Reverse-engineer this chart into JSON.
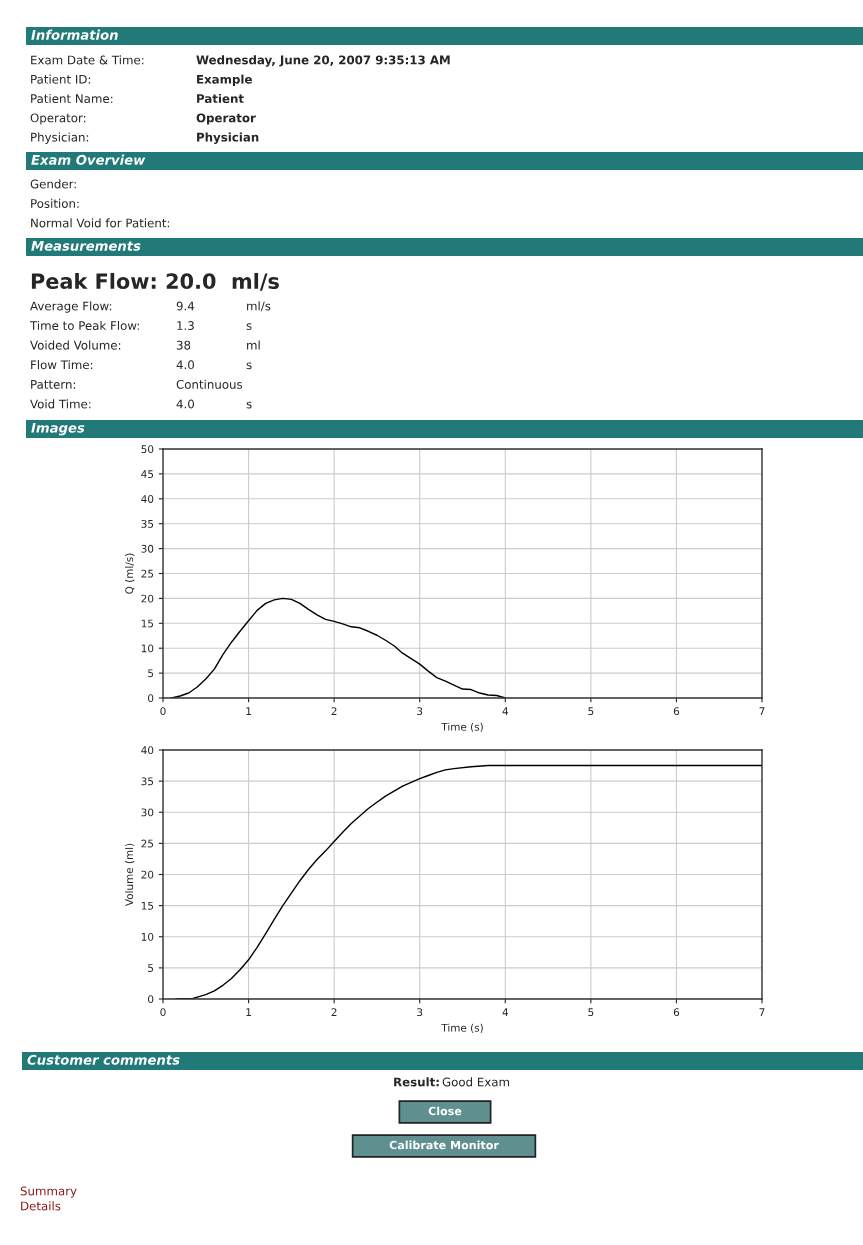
{
  "chart_data": [
    {
      "type": "other",
      "title": "Information",
      "annotations": [
        "Exam Date & Time:",
        "Wednesday, June 20, 2007 9:35:13 AM",
        "Patient ID:",
        "Example",
        "Patient Name:",
        "Patient",
        "Operator:",
        "Operator",
        "Physician:",
        "Physician"
      ]
    },
    {
      "type": "other",
      "title": "Exam Overview",
      "annotations": [
        "Gender:",
        "Position:",
        "Normal Void for Patient:"
      ]
    },
    {
      "type": "other",
      "title": "Measurements",
      "subtitle": "Peak Flow: 20.0  ml/s",
      "annotations": [
        "Average Flow:",
        "9.4",
        "ml/s",
        "Time to Peak Flow:",
        "1.3",
        "s",
        "Voided Volume:",
        "38",
        "ml",
        "Flow Time:",
        "4.0",
        "s",
        "Pattern:",
        "Continuous",
        "Void Time:",
        "4.0",
        "s"
      ]
    },
    {
      "type": "other",
      "title": "Images"
    },
    {
      "type": "line",
      "xlabel": "Time (s)",
      "ylabel": "Q (ml/s)",
      "xlim": [
        0,
        7
      ],
      "ylim": [
        0,
        50
      ],
      "xticks": [
        0,
        1,
        2,
        3,
        4,
        5,
        6,
        7
      ],
      "yticks": [
        0,
        5,
        10,
        15,
        20,
        25,
        30,
        35,
        40,
        45,
        50
      ],
      "grid": true,
      "color": "#000000",
      "x": [
        0.1,
        0.2,
        0.3,
        0.4,
        0.5,
        0.6,
        0.7,
        0.8,
        0.9,
        1.0,
        1.1,
        1.2,
        1.3,
        1.4,
        1.5,
        1.6,
        1.7,
        1.8,
        1.9,
        2.0,
        2.1,
        2.2,
        2.3,
        2.4,
        2.5,
        2.6,
        2.7,
        2.8,
        2.9,
        3.0,
        3.1,
        3.2,
        3.3,
        3.4,
        3.5,
        3.6,
        3.7,
        3.8,
        3.9,
        4.0
      ],
      "values": [
        0,
        0.4,
        1.0,
        2.2,
        3.8,
        5.8,
        8.7,
        11.2,
        13.4,
        15.5,
        17.6,
        19.0,
        19.7,
        20.0,
        19.8,
        19.0,
        17.8,
        16.7,
        15.8,
        15.4,
        14.9,
        14.3,
        14.1,
        13.4,
        12.6,
        11.6,
        10.5,
        9.0,
        7.9,
        6.8,
        5.4,
        4.1,
        3.4,
        2.6,
        1.8,
        1.7,
        1.0,
        0.6,
        0.5,
        0
      ]
    },
    {
      "type": "line",
      "xlabel": "Time (s)",
      "ylabel": "Volume (ml)",
      "xlim": [
        0,
        7
      ],
      "ylim": [
        0,
        40
      ],
      "xticks": [
        0,
        1,
        2,
        3,
        4,
        5,
        6,
        7
      ],
      "yticks": [
        0,
        5,
        10,
        15,
        20,
        25,
        30,
        35,
        40
      ],
      "grid": true,
      "color": "#000000",
      "x": [
        0.15,
        0.35,
        0.5,
        0.6,
        0.7,
        0.8,
        0.9,
        1.0,
        1.1,
        1.2,
        1.3,
        1.4,
        1.5,
        1.6,
        1.7,
        1.8,
        1.9,
        2.0,
        2.1,
        2.2,
        2.3,
        2.4,
        2.5,
        2.6,
        2.7,
        2.8,
        2.9,
        3.0,
        3.1,
        3.2,
        3.3,
        3.4,
        3.6,
        3.8,
        4.0,
        7.0
      ],
      "values": [
        0,
        0.1,
        0.7,
        1.3,
        2.2,
        3.3,
        4.7,
        6.3,
        8.3,
        10.5,
        12.8,
        15.0,
        17.0,
        19.0,
        20.8,
        22.4,
        23.8,
        25.3,
        26.8,
        28.2,
        29.4,
        30.6,
        31.6,
        32.6,
        33.4,
        34.2,
        34.8,
        35.4,
        35.9,
        36.4,
        36.8,
        37.0,
        37.3,
        37.5,
        37.5,
        37.5
      ]
    },
    {
      "type": "other",
      "title": "Customer comments",
      "annotations": [
        "Result:",
        "Good Exam",
        "Close",
        "Calibrate Monitor",
        "Summary",
        "Details"
      ]
    }
  ]
}
